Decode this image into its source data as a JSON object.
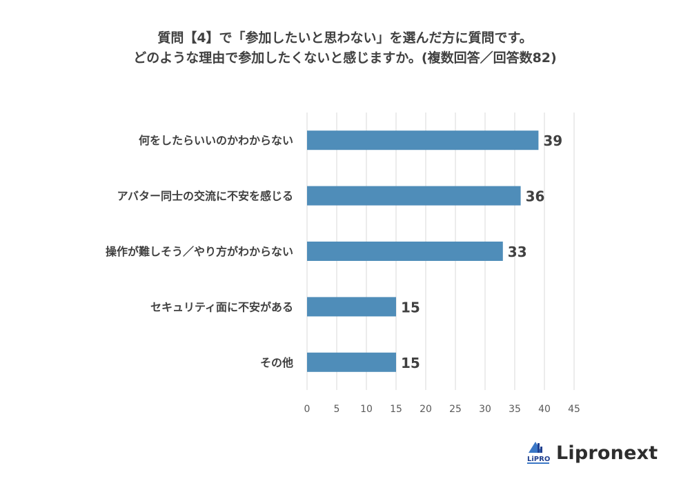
{
  "header": {
    "title_line1": "質問【4】で「参加したいと思わない」を選んだ方に質問です。",
    "title_line2": "どのような理由で参加したくないと感じますか。(複数回答／回答数82)"
  },
  "logo": {
    "brand_name": "Lipronext",
    "mark_text": "LiPRO",
    "mark_color": "#1f3f8f",
    "accent_color": "#3a77c6"
  },
  "chart_data": {
    "type": "bar",
    "orientation": "horizontal",
    "categories": [
      "何をしたらいいのかわからない",
      "アバター同士の交流に不安を感じる",
      "操作が難しそう／やり方がわからない",
      "セキュリティ面に不安がある",
      "その他"
    ],
    "values": [
      39,
      36,
      33,
      15,
      15
    ],
    "xlim": [
      0,
      45
    ],
    "x_ticks": [
      0,
      5,
      10,
      15,
      20,
      25,
      30,
      35,
      40,
      45
    ],
    "grid": "vertical",
    "bar_color": "#4f8db9",
    "grid_color": "#d9d9d9",
    "data_labels": true,
    "legend": "none"
  }
}
